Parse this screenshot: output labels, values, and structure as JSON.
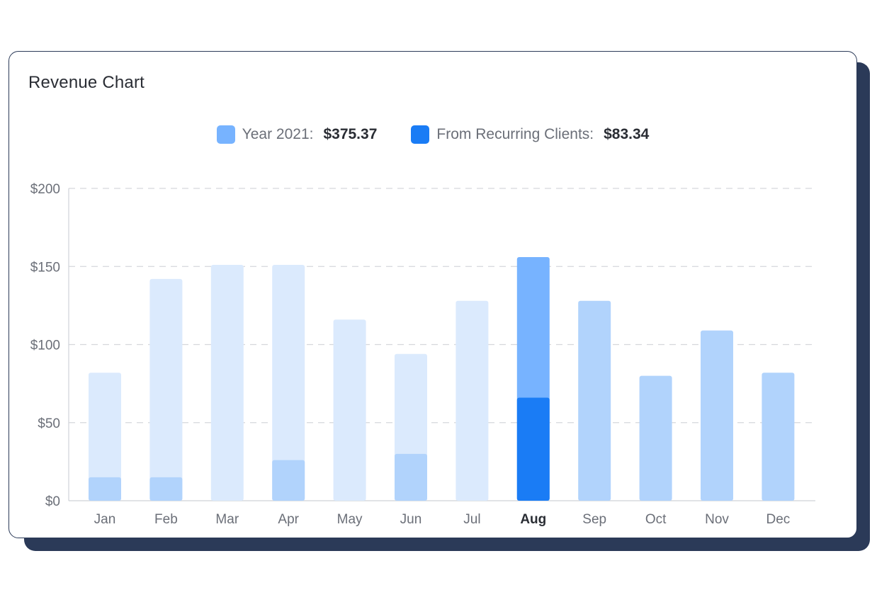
{
  "card": {
    "title": "Revenue Chart"
  },
  "legend": [
    {
      "label": "Year 2021:",
      "value": "$375.37",
      "color": "#77b3ff"
    },
    {
      "label": "From Recurring Clients:",
      "value": "$83.34",
      "color": "#1a7cf5"
    }
  ],
  "colors": {
    "total_light": "#dbeafd",
    "total_medium": "#b1d3fc",
    "total_highlight": "#77b3ff",
    "recurring_light": "#b1d3fc",
    "recurring_highlight": "#1a7cf5",
    "grid": "#d5d7dc",
    "axis": "#cfd2d8"
  },
  "chart_data": {
    "type": "bar",
    "title": "Revenue Chart",
    "categories": [
      "Jan",
      "Feb",
      "Mar",
      "Apr",
      "May",
      "Jun",
      "Jul",
      "Aug",
      "Sep",
      "Oct",
      "Nov",
      "Dec"
    ],
    "highlight_category": "Aug",
    "series": [
      {
        "name": "Year 2021",
        "values": [
          82,
          142,
          151,
          151,
          116,
          94,
          128,
          156,
          128,
          80,
          109,
          82
        ]
      },
      {
        "name": "From Recurring Clients",
        "values": [
          15,
          15,
          0,
          26,
          0,
          30,
          0,
          66,
          0,
          0,
          0,
          0
        ]
      }
    ],
    "y_ticks": [
      "$0",
      "$50",
      "$100",
      "$150",
      "$200"
    ],
    "y_tick_values": [
      0,
      50,
      100,
      150,
      200
    ],
    "ylim": [
      0,
      200
    ],
    "grid": true,
    "legend_position": "top-center"
  }
}
